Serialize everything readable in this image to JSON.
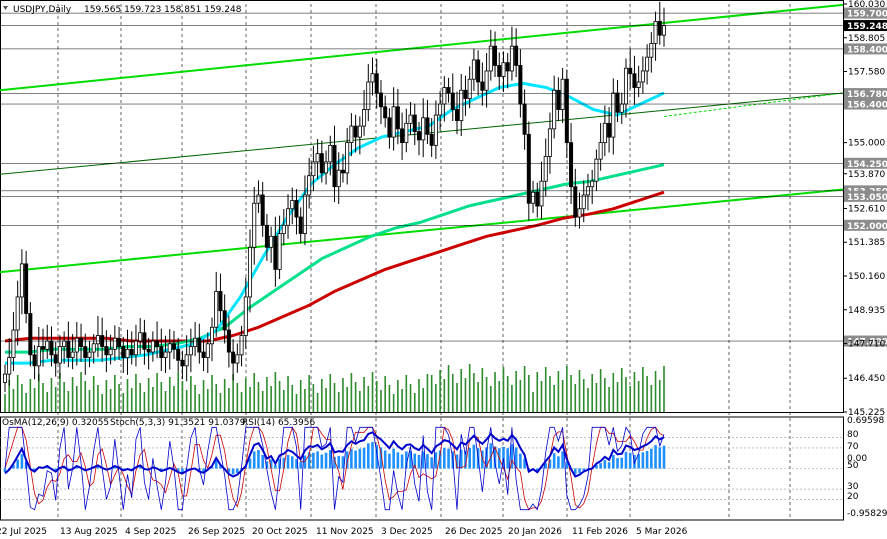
{
  "header": {
    "symbol": "USDJPY,Daily",
    "ohlc": "159.565 159.723 158.851 159.248"
  },
  "indicator_header": {
    "osma": "OsMA(12,26,9) 0.32055",
    "stoch": "Stoch(5,3,3) 91.3521 91.0379",
    "rsi": "RSI(14) 65.3956"
  },
  "colors": {
    "candle": "#000000",
    "ma_fast": "#00e5ff",
    "ma_mid": "#00e08a",
    "ma_slow": "#cc0000",
    "channel": "#00dd00",
    "channel_mid": "#006600",
    "volume": "#2e8b2e",
    "osma": "#1e90ff",
    "stoch_main": "#0000cc",
    "stoch_signal": "#cc0000",
    "label_bg": "#8c8c8c",
    "current_bg": "#000000"
  },
  "chart_data": {
    "type": "candlestick",
    "symbol": "USDJPY",
    "timeframe": "Daily",
    "last": {
      "open": 159.565,
      "high": 159.723,
      "low": 158.851,
      "close": 159.248
    },
    "x_ticks": [
      "22 Jul 2025",
      "13 Aug 2025",
      "4 Sep 2025",
      "26 Sep 2025",
      "20 Oct 2025",
      "11 Nov 2025",
      "3 Dec 2025",
      "26 Dec 2025",
      "20 Jan 2026",
      "11 Feb 2026",
      "5 Mar 2026"
    ],
    "price_axis": {
      "ylim": [
        145.225,
        160.03
      ],
      "ticks": [
        "160.030",
        "158.805",
        "157.580",
        "155.000",
        "153.870",
        "152.610",
        "151.385",
        "150.160",
        "148.935",
        "147.710",
        "146.450",
        "145.225"
      ]
    },
    "price_labels": [
      {
        "value": 159.7,
        "text": "159.700",
        "style": "gray"
      },
      {
        "value": 159.248,
        "text": "159.248",
        "style": "current"
      },
      {
        "value": 158.4,
        "text": "158.400",
        "style": "gray"
      },
      {
        "value": 156.78,
        "text": "156.780",
        "style": "gray"
      },
      {
        "value": 156.4,
        "text": "156.400",
        "style": "gray"
      },
      {
        "value": 154.25,
        "text": "154.250",
        "style": "gray"
      },
      {
        "value": 153.25,
        "text": "153.250",
        "style": "gray"
      },
      {
        "value": 153.05,
        "text": "153.050",
        "style": "gray"
      },
      {
        "value": 152.0,
        "text": "152.000",
        "style": "gray"
      },
      {
        "value": 147.8,
        "text": "147.800",
        "style": "gray"
      }
    ],
    "closes": [
      146.6,
      147.2,
      148.2,
      149.4,
      150.6,
      148.8,
      147.3,
      146.9,
      147.6,
      147.5,
      147.8,
      147.3,
      147.0,
      147.6,
      147.8,
      147.2,
      147.4,
      147.9,
      147.6,
      147.2,
      147.4,
      147.7,
      148.0,
      147.6,
      147.3,
      147.5,
      147.9,
      147.6,
      147.2,
      147.5,
      147.3,
      147.8,
      148.1,
      147.5,
      147.4,
      147.8,
      147.6,
      147.2,
      147.4,
      147.7,
      147.5,
      147.1,
      146.9,
      147.3,
      147.6,
      147.9,
      147.4,
      147.2,
      147.7,
      148.3,
      149.6,
      148.9,
      148.2,
      147.4,
      147.0,
      147.3,
      148.0,
      149.4,
      151.2,
      152.8,
      153.1,
      152.0,
      151.2,
      151.6,
      150.4,
      151.7,
      152.0,
      152.6,
      152.9,
      152.3,
      151.7,
      153.1,
      153.8,
      154.3,
      154.6,
      153.9,
      154.3,
      154.9,
      153.4,
      154.0,
      153.9,
      155.0,
      155.6,
      155.2,
      155.6,
      156.2,
      157.2,
      157.5,
      156.8,
      156.3,
      155.9,
      155.2,
      156.3,
      155.5,
      155.0,
      155.7,
      156.0,
      155.4,
      155.1,
      155.9,
      155.3,
      154.9,
      156.0,
      156.4,
      157.0,
      156.8,
      156.2,
      155.8,
      156.9,
      156.6,
      157.3,
      158.0,
      157.2,
      156.9,
      157.6,
      158.5,
      157.8,
      157.4,
      157.9,
      157.6,
      158.5,
      157.8,
      156.4,
      155.3,
      152.8,
      153.2,
      152.7,
      153.6,
      154.5,
      155.5,
      156.9,
      156.2,
      157.3,
      155.0,
      153.4,
      152.3,
      152.6,
      153.1,
      153.4,
      153.6,
      154.4,
      155.0,
      155.7,
      155.2,
      156.8,
      156.1,
      156.4,
      157.7,
      157.5,
      157.0,
      157.2,
      157.6,
      158.1,
      158.6,
      159.4,
      158.9,
      159.25
    ],
    "ma_fast": [
      147.0,
      147.0,
      147.1,
      147.1,
      147.1,
      147.2,
      147.3,
      147.5,
      147.7,
      148.2,
      149.4,
      150.9,
      152.3,
      153.5,
      154.2,
      154.8,
      155.2,
      155.4,
      155.6,
      156.2,
      156.6,
      157.0,
      157.15,
      157.0,
      156.65,
      156.2,
      156.0,
      156.4,
      156.8
    ],
    "ma_mid": [
      147.4,
      147.4,
      147.5,
      147.5,
      147.5,
      147.6,
      147.6,
      147.7,
      147.9,
      148.3,
      149.0,
      149.6,
      150.2,
      150.8,
      151.2,
      151.6,
      151.9,
      152.1,
      152.4,
      152.7,
      152.9,
      153.1,
      153.3,
      153.5,
      153.6,
      153.8,
      154.0,
      154.2
    ],
    "ma_slow": [
      147.8,
      147.9,
      147.9,
      147.9,
      147.9,
      147.8,
      147.8,
      147.8,
      147.8,
      148.0,
      148.3,
      148.7,
      149.1,
      149.6,
      150.0,
      150.4,
      150.7,
      151.0,
      151.3,
      151.6,
      151.8,
      152.0,
      152.25,
      152.4,
      152.6,
      152.9,
      153.2
    ],
    "channels": [
      {
        "name": "upper",
        "from": 156.9,
        "to": 160.0
      },
      {
        "name": "middle",
        "from": 153.85,
        "to": 156.8
      },
      {
        "name": "lower",
        "from": 150.3,
        "to": 153.3
      }
    ],
    "oscillator": {
      "ylim": [
        -0.95829,
        0.69598
      ],
      "ticks": [
        "0.69598",
        "80",
        "70",
        "0.00",
        "50",
        "30",
        "20",
        "-0.95829"
      ],
      "osma_last": 0.32055,
      "stoch_main_last": 91.3521,
      "stoch_signal_last": 91.0379,
      "rsi_last": 65.3956
    }
  }
}
